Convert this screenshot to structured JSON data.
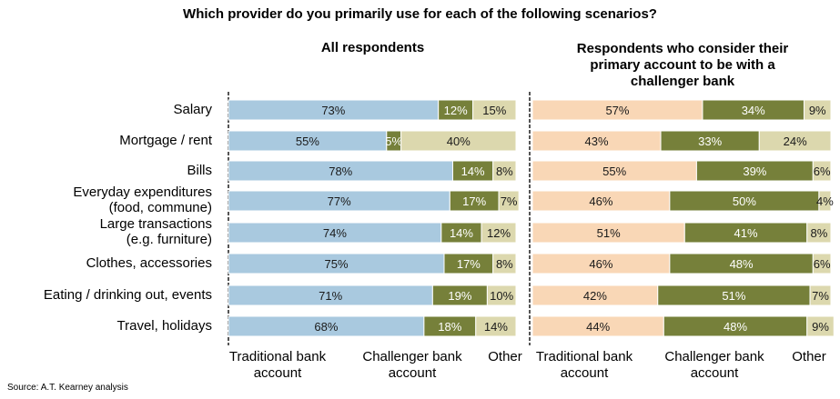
{
  "chart_data": {
    "type": "bar",
    "title": "Which provider do you primarily use for each of the following scenarios?",
    "categories": [
      "Salary",
      "Mortgage / rent",
      "Bills",
      "Everyday expenditures (food, commune)",
      "Large transactions (e.g. furniture)",
      "Clothes, accessories",
      "Eating / drinking out, events",
      "Travel, holidays"
    ],
    "category_lines": [
      [
        "Salary"
      ],
      [
        "Mortgage / rent"
      ],
      [
        "Bills"
      ],
      [
        "Everyday  expenditures",
        "(food, commune)"
      ],
      [
        "Large transactions",
        "(e.g. furniture)"
      ],
      [
        "Clothes, accessories"
      ],
      [
        "Eating / drinking out, events"
      ],
      [
        "Travel, holidays"
      ]
    ],
    "stacked": true,
    "panels": [
      {
        "title": "All respondents",
        "series": [
          {
            "name": "Traditional bank account",
            "values": [
              73,
              55,
              78,
              77,
              74,
              75,
              71,
              68
            ]
          },
          {
            "name": "Challenger bank account",
            "values": [
              12,
              5,
              14,
              17,
              14,
              17,
              19,
              18
            ]
          },
          {
            "name": "Other",
            "values": [
              15,
              40,
              8,
              7,
              12,
              8,
              10,
              14
            ]
          }
        ]
      },
      {
        "title": "Respondents who consider their primary account to be with a challenger bank",
        "title_lines": [
          "Respondents who consider their",
          "primary account to be with a",
          "challenger bank"
        ],
        "series": [
          {
            "name": "Traditional bank account",
            "values": [
              57,
              43,
              55,
              46,
              51,
              46,
              42,
              44
            ]
          },
          {
            "name": "Challenger bank account",
            "values": [
              34,
              33,
              39,
              50,
              41,
              48,
              51,
              48
            ]
          },
          {
            "name": "Other",
            "values": [
              9,
              24,
              6,
              4,
              8,
              6,
              7,
              9
            ]
          }
        ]
      }
    ],
    "legend_lines": [
      [
        "Traditional bank",
        "account"
      ],
      [
        "Challenger bank",
        "account"
      ],
      [
        "Other"
      ]
    ],
    "colors": {
      "left": [
        "#a9c9df",
        "#76803a",
        "#dcd8ae"
      ],
      "right": [
        "#f9d7b6",
        "#76803a",
        "#dcd8ae"
      ],
      "label_light": "#ffffff",
      "label_dark": "#1a1a1a"
    },
    "unit_suffix": "%",
    "xlim": [
      0,
      100
    ]
  },
  "source": "Source: A.T. Kearney analysis"
}
